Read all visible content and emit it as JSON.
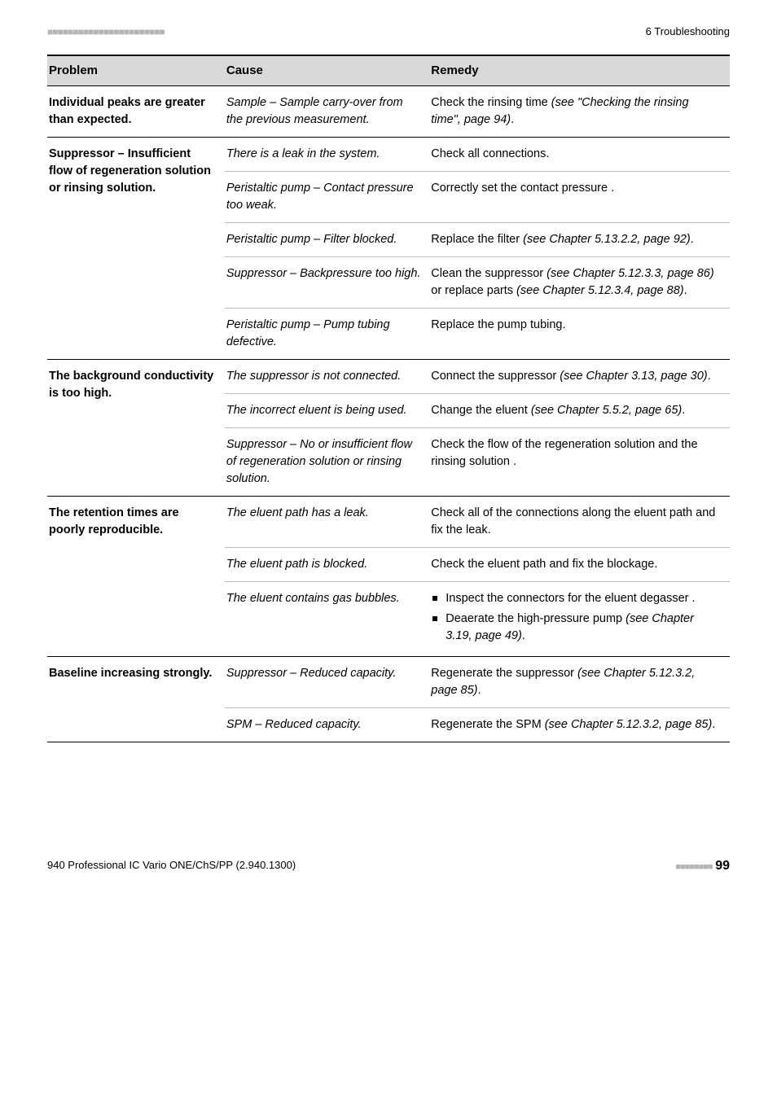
{
  "header": {
    "dashes": "■■■■■■■■■■■■■■■■■■■■■■■",
    "section": "6 Troubleshooting"
  },
  "columns": {
    "problem": "Problem",
    "cause": "Cause",
    "remedy": "Remedy"
  },
  "rows": {
    "r1": {
      "problem": "Individual peaks are greater than expected.",
      "cause": "Sample – Sample carry-over from the previous measurement.",
      "remedy_pre": "Check the rinsing time ",
      "remedy_em": "(see \"Checking the rinsing time\", page 94)",
      "remedy_post": "."
    },
    "r2": {
      "problem": "Suppressor – Insufficient flow of regeneration solution or rinsing solution.",
      "sub1": {
        "cause": "There is a leak in the system.",
        "remedy": "Check all connections."
      },
      "sub2": {
        "cause": "Peristaltic pump – Contact pressure too weak.",
        "remedy": "Correctly set the contact pressure ."
      },
      "sub3": {
        "cause": "Peristaltic pump – Filter blocked.",
        "remedy_pre": "Replace the filter ",
        "remedy_em": "(see Chapter 5.13.2.2, page 92)",
        "remedy_post": "."
      },
      "sub4": {
        "cause": "Suppressor – Backpressure too high.",
        "remedy_pre": "Clean the suppressor ",
        "remedy_em1": "(see Chapter 5.12.3.3, page 86)",
        "remedy_mid": " or replace parts ",
        "remedy_em2": "(see Chapter 5.12.3.4, page 88)",
        "remedy_post": "."
      },
      "sub5": {
        "cause": "Peristaltic pump – Pump tubing defective.",
        "remedy": "Replace the pump tubing."
      }
    },
    "r3": {
      "problem": "The background conductivity is too high.",
      "sub1": {
        "cause": "The suppressor is not connected.",
        "remedy_pre": "Connect the suppressor ",
        "remedy_em": "(see Chapter 3.13, page 30)",
        "remedy_post": "."
      },
      "sub2": {
        "cause": "The incorrect eluent is being used.",
        "remedy_pre": "Change the eluent ",
        "remedy_em": "(see Chapter 5.5.2, page 65)",
        "remedy_post": "."
      },
      "sub3": {
        "cause": "Suppressor – No or insufficient flow of regeneration solution or rinsing solution.",
        "remedy": "Check the flow of the regeneration solution and the rinsing solution ."
      }
    },
    "r4": {
      "problem": "The retention times are poorly reproducible.",
      "sub1": {
        "cause": "The eluent path has a leak.",
        "remedy": "Check all of the connections along the eluent path and fix the leak."
      },
      "sub2": {
        "cause": "The eluent path is blocked.",
        "remedy": "Check the eluent path and fix the blockage."
      },
      "sub3": {
        "cause": "The eluent contains gas bubbles.",
        "li1": "Inspect the connectors for the eluent degasser .",
        "li2_pre": "Deaerate the high-pressure pump ",
        "li2_em": "(see Chapter 3.19, page 49)",
        "li2_post": "."
      }
    },
    "r5": {
      "problem": "Baseline increasing strongly.",
      "sub1": {
        "cause": "Suppressor – Reduced capacity.",
        "remedy_pre": "Regenerate the suppressor ",
        "remedy_em": "(see Chapter 5.12.3.2, page 85)",
        "remedy_post": "."
      },
      "sub2": {
        "cause": "SPM – Reduced capacity.",
        "remedy_pre": "Regenerate the SPM ",
        "remedy_em": "(see Chapter 5.12.3.2, page 85)",
        "remedy_post": "."
      }
    }
  },
  "footer": {
    "left": "940 Professional IC Vario ONE/ChS/PP (2.940.1300)",
    "dashes": "■■■■■■■■",
    "page": "99"
  }
}
